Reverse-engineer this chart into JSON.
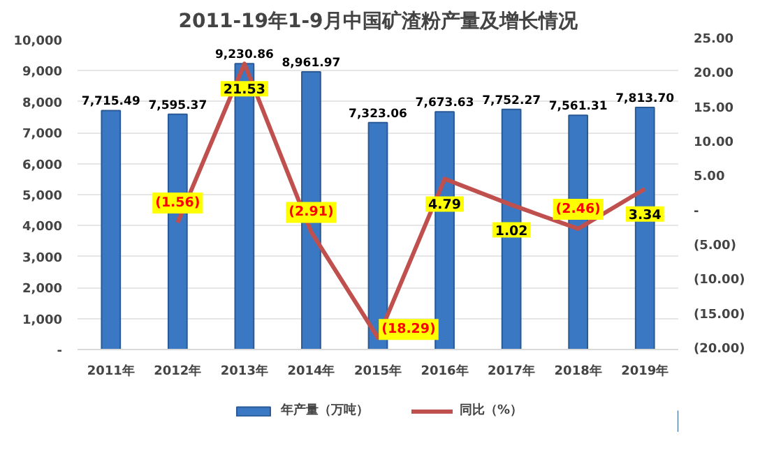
{
  "chart_data": {
    "type": "bar",
    "title": "2011-19年1-9月中国矿渣粉产量及增长情况",
    "categories": [
      "2011年",
      "2012年",
      "2013年",
      "2014年",
      "2015年",
      "2016年",
      "2017年",
      "2018年",
      "2019年"
    ],
    "series": [
      {
        "name": "年产量（万吨）",
        "color": "#3a78c4",
        "values": [
          7715.49,
          7595.37,
          9230.86,
          8961.97,
          7323.06,
          7673.63,
          7752.27,
          7561.31,
          7813.7
        ],
        "value_labels": [
          "7,715.49",
          "7,595.37",
          "9,230.86",
          "8,961.97",
          "7,323.06",
          "7,673.63",
          "7,752.27",
          "7,561.31",
          "7,813.70"
        ]
      },
      {
        "name": "同比（%）",
        "type": "line",
        "axis": "y2",
        "color": "#c0504d",
        "values": [
          null,
          -1.56,
          21.53,
          -2.91,
          -18.29,
          4.79,
          1.02,
          -2.46,
          3.34
        ],
        "value_labels": [
          null,
          "(1.56)",
          "21.53",
          "(2.91)",
          "(18.29)",
          "4.79",
          "1.02",
          "(2.46)",
          "3.34"
        ]
      }
    ],
    "ylim": [
      0,
      10000
    ],
    "yticks": [
      {
        "value": 0,
        "label": "-"
      },
      {
        "value": 1000,
        "label": "1,000"
      },
      {
        "value": 2000,
        "label": "2,000"
      },
      {
        "value": 3000,
        "label": "3,000"
      },
      {
        "value": 4000,
        "label": "4,000"
      },
      {
        "value": 5000,
        "label": "5,000"
      },
      {
        "value": 6000,
        "label": "6,000"
      },
      {
        "value": 7000,
        "label": "7,000"
      },
      {
        "value": 8000,
        "label": "8,000"
      },
      {
        "value": 9000,
        "label": "9,000"
      },
      {
        "value": 10000,
        "label": "10,000"
      }
    ],
    "y2lim": [
      -20,
      25
    ],
    "y2ticks": [
      {
        "value": -20,
        "label": "(20.00)"
      },
      {
        "value": -15,
        "label": "(15.00)"
      },
      {
        "value": -10,
        "label": "(10.00)"
      },
      {
        "value": -5,
        "label": "(5.00)"
      },
      {
        "value": 0,
        "label": "-"
      },
      {
        "value": 5,
        "label": "5.00"
      },
      {
        "value": 10,
        "label": "10.00"
      },
      {
        "value": 15,
        "label": "15.00"
      },
      {
        "value": 20,
        "label": "20.00"
      },
      {
        "value": 25,
        "label": "25.00"
      }
    ],
    "grid": "y",
    "legend": "bottom",
    "marker": "none",
    "line_style": "solid"
  }
}
